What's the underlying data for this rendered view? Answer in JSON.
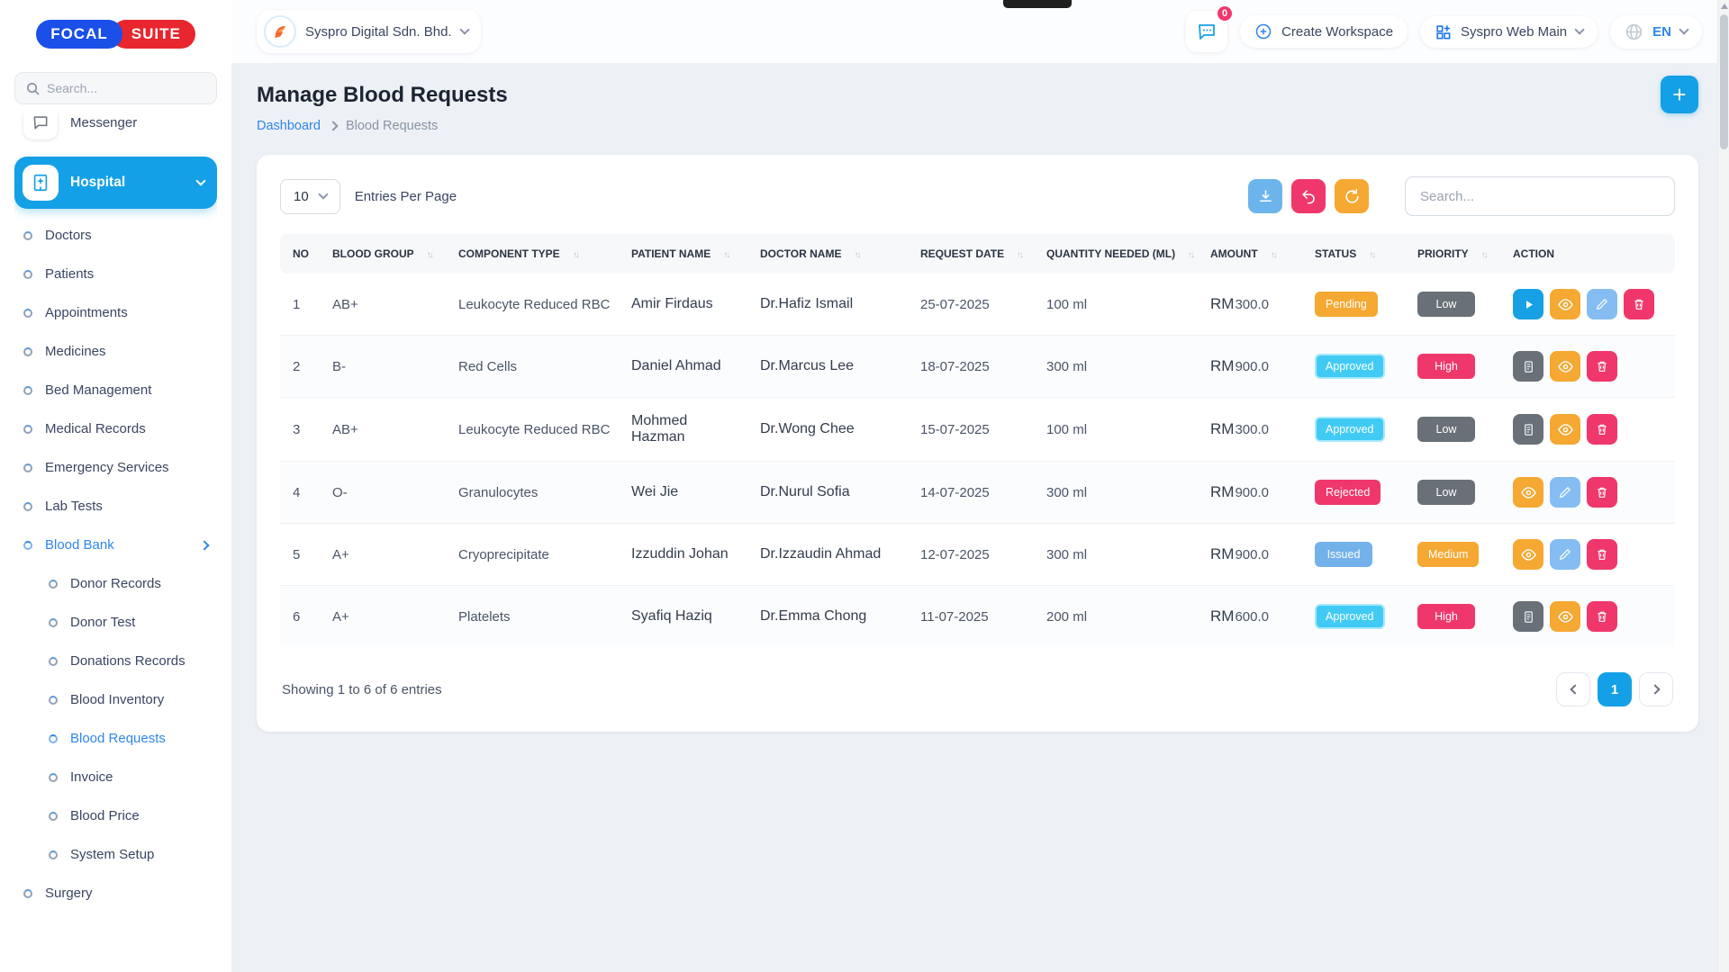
{
  "brand": {
    "logo_left": "FOCAL",
    "logo_right": "SUITE"
  },
  "sidebar": {
    "search_placeholder": "Search...",
    "messenger_label": "Messenger",
    "group": {
      "label": "Hospital"
    },
    "menu": [
      {
        "label": "Doctors",
        "indent": 1
      },
      {
        "label": "Patients",
        "indent": 1
      },
      {
        "label": "Appointments",
        "indent": 1
      },
      {
        "label": "Medicines",
        "indent": 1
      },
      {
        "label": "Bed Management",
        "indent": 1
      },
      {
        "label": "Medical Records",
        "indent": 1
      },
      {
        "label": "Emergency Services",
        "indent": 1
      },
      {
        "label": "Lab Tests",
        "indent": 1
      },
      {
        "label": "Blood Bank",
        "indent": 1,
        "active": true,
        "chevron": "right"
      },
      {
        "label": "Donor Records",
        "indent": 2
      },
      {
        "label": "Donor Test",
        "indent": 2
      },
      {
        "label": "Donations Records",
        "indent": 2
      },
      {
        "label": "Blood Inventory",
        "indent": 2
      },
      {
        "label": "Blood Requests",
        "indent": 2,
        "active": true
      },
      {
        "label": "Invoice",
        "indent": 2
      },
      {
        "label": "Blood Price",
        "indent": 2
      },
      {
        "label": "System Setup",
        "indent": 2
      },
      {
        "label": "Surgery",
        "indent": 1
      }
    ]
  },
  "header": {
    "company": "Syspro Digital Sdn. Bhd.",
    "chat_badge": "0",
    "create_workspace_label": "Create Workspace",
    "workspace_label": "Syspro Web Main",
    "language": "EN"
  },
  "page": {
    "title": "Manage Blood Requests",
    "breadcrumb_home": "Dashboard",
    "breadcrumb_current": "Blood Requests",
    "add_button": "+"
  },
  "toolbar": {
    "entries_value": "10",
    "entries_label": "Entries Per Page",
    "search_placeholder": "Search..."
  },
  "table": {
    "columns": [
      {
        "label": "NO",
        "sortable": false
      },
      {
        "label": "BLOOD GROUP",
        "sortable": true
      },
      {
        "label": "COMPONENT TYPE",
        "sortable": true
      },
      {
        "label": "PATIENT NAME",
        "sortable": true
      },
      {
        "label": "DOCTOR NAME",
        "sortable": true
      },
      {
        "label": "REQUEST DATE",
        "sortable": true
      },
      {
        "label": "QUANTITY NEEDED (ML)",
        "sortable": true
      },
      {
        "label": "AMOUNT",
        "sortable": true
      },
      {
        "label": "STATUS",
        "sortable": true
      },
      {
        "label": "PRIORITY",
        "sortable": true
      },
      {
        "label": "ACTION",
        "sortable": false
      }
    ],
    "rows": [
      {
        "no": "1",
        "blood_group": "AB+",
        "component": "Leukocyte Reduced RBC",
        "patient": "Amir Firdaus",
        "doctor": "Dr.Hafiz Ismail",
        "date": "25-07-2025",
        "quantity": "100 ml",
        "currency": "RM",
        "amount": "300.0",
        "status": "Pending",
        "status_color": "orange",
        "priority": "Low",
        "priority_color": "gray",
        "actions": [
          "play",
          "eye",
          "edit",
          "delete"
        ]
      },
      {
        "no": "2",
        "blood_group": "B-",
        "component": "Red Cells",
        "patient": "Daniel Ahmad",
        "doctor": "Dr.Marcus Lee",
        "date": "18-07-2025",
        "quantity": "300 ml",
        "currency": "RM",
        "amount": "900.0",
        "status": "Approved",
        "status_color": "cyan",
        "priority": "High",
        "priority_color": "pink",
        "actions": [
          "file",
          "eye",
          "delete"
        ]
      },
      {
        "no": "3",
        "blood_group": "AB+",
        "component": "Leukocyte Reduced RBC",
        "patient": "Mohmed Hazman",
        "doctor": "Dr.Wong Chee",
        "date": "15-07-2025",
        "quantity": "100 ml",
        "currency": "RM",
        "amount": "300.0",
        "status": "Approved",
        "status_color": "cyan",
        "priority": "Low",
        "priority_color": "gray",
        "actions": [
          "file",
          "eye",
          "delete"
        ]
      },
      {
        "no": "4",
        "blood_group": "O-",
        "component": "Granulocytes",
        "patient": "Wei Jie",
        "doctor": "Dr.Nurul Sofia",
        "date": "14-07-2025",
        "quantity": "300 ml",
        "currency": "RM",
        "amount": "900.0",
        "status": "Rejected",
        "status_color": "pink",
        "priority": "Low",
        "priority_color": "gray",
        "actions": [
          "eye",
          "edit",
          "delete"
        ]
      },
      {
        "no": "5",
        "blood_group": "A+",
        "component": "Cryoprecipitate",
        "patient": "Izzuddin Johan",
        "doctor": "Dr.Izzaudin Ahmad",
        "date": "12-07-2025",
        "quantity": "300 ml",
        "currency": "RM",
        "amount": "900.0",
        "status": "Issued",
        "status_color": "blue",
        "priority": "Medium",
        "priority_color": "orange",
        "actions": [
          "eye",
          "edit",
          "delete"
        ]
      },
      {
        "no": "6",
        "blood_group": "A+",
        "component": "Platelets",
        "patient": "Syafiq Haziq",
        "doctor": "Dr.Emma Chong",
        "date": "11-07-2025",
        "quantity": "200 ml",
        "currency": "RM",
        "amount": "600.0",
        "status": "Approved",
        "status_color": "cyan",
        "priority": "High",
        "priority_color": "pink",
        "actions": [
          "file",
          "eye",
          "delete"
        ]
      }
    ]
  },
  "footer": {
    "showing": "Showing 1 to 6 of 6 entries",
    "current_page": "1"
  },
  "colors": {
    "accent_blue": "#14a0e6",
    "link_blue": "#2f86eb",
    "logo_blue": "#1a4fe8",
    "logo_red": "#e8262d",
    "orange": "#f5a832",
    "pink": "#f0376b",
    "cyan": "#41cbf4",
    "soft_blue": "#72b1ea",
    "gray": "#697077"
  }
}
